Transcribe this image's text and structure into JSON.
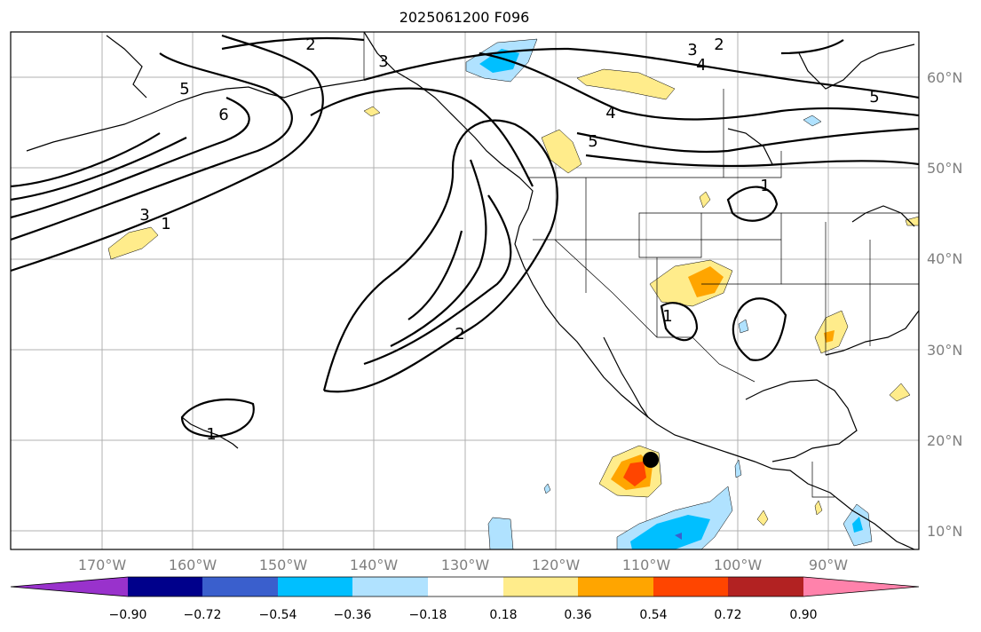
{
  "title": "2025061200 F096",
  "map": {
    "lat_labels": [
      "60°N",
      "50°N",
      "40°N",
      "30°N",
      "20°N",
      "10°N"
    ],
    "lon_labels": [
      "170°W",
      "160°W",
      "150°W",
      "140°W",
      "130°W",
      "120°W",
      "110°W",
      "100°W",
      "90°W"
    ],
    "contour_labels": [
      "2",
      "3",
      "3",
      "2",
      "4",
      "5",
      "5",
      "6",
      "4",
      "5",
      "3",
      "1",
      "2",
      "1",
      "1",
      "1"
    ],
    "marker": "black-dot"
  },
  "colorbar": {
    "tick_labels": [
      "−0.90",
      "−0.72",
      "−0.54",
      "−0.36",
      "−0.18",
      "0.18",
      "0.36",
      "0.54",
      "0.72",
      "0.90"
    ],
    "colors": [
      "#9932cc",
      "#00008b",
      "#3a5fcd",
      "#00bfff",
      "#b0e2ff",
      "#ffffff",
      "#ffec8b",
      "#ffa500",
      "#ff4500",
      "#b22222",
      "#ff82ab"
    ]
  }
}
